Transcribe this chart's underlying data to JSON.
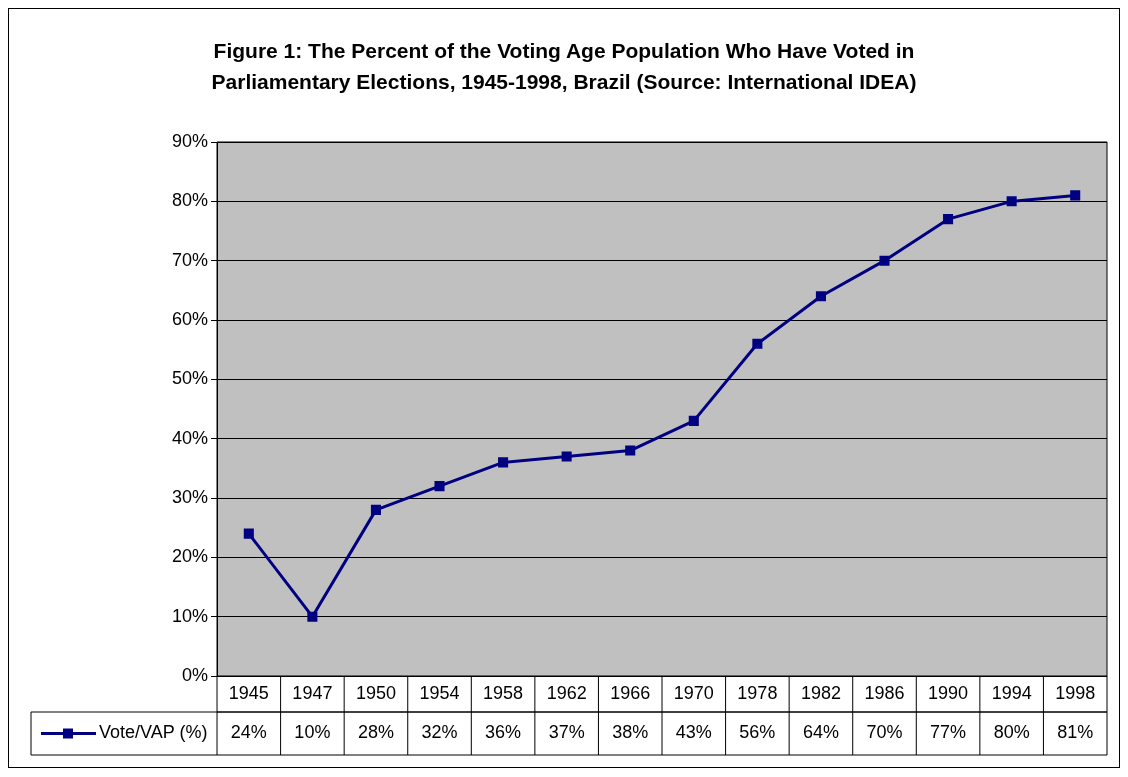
{
  "chart_data": {
    "type": "line",
    "title": "Figure 1: The Percent of the Voting Age Population Who Have Voted in Parliamentary Elections, 1945-1998, Brazil (Source: International IDEA)",
    "categories": [
      "1945",
      "1947",
      "1950",
      "1954",
      "1958",
      "1962",
      "1966",
      "1970",
      "1978",
      "1982",
      "1986",
      "1990",
      "1994",
      "1998"
    ],
    "series": [
      {
        "name": "Vote/VAP (%)",
        "color": "#000080",
        "values": [
          24,
          10,
          28,
          32,
          36,
          37,
          38,
          43,
          56,
          64,
          70,
          77,
          80,
          81
        ],
        "value_labels": [
          "24%",
          "10%",
          "28%",
          "32%",
          "36%",
          "37%",
          "38%",
          "43%",
          "56%",
          "64%",
          "70%",
          "77%",
          "80%",
          "81%"
        ]
      }
    ],
    "ylim": [
      0,
      90
    ],
    "yticks": [
      {
        "value": 0,
        "label": "0%"
      },
      {
        "value": 10,
        "label": "10%"
      },
      {
        "value": 20,
        "label": "20%"
      },
      {
        "value": 30,
        "label": "30%"
      },
      {
        "value": 40,
        "label": "40%"
      },
      {
        "value": 50,
        "label": "50%"
      },
      {
        "value": 60,
        "label": "60%"
      },
      {
        "value": 70,
        "label": "70%"
      },
      {
        "value": 80,
        "label": "80%"
      },
      {
        "value": 90,
        "label": "90%"
      }
    ],
    "grid": "y",
    "legend": "bottom left",
    "marker": "square",
    "line_style": "solid"
  }
}
